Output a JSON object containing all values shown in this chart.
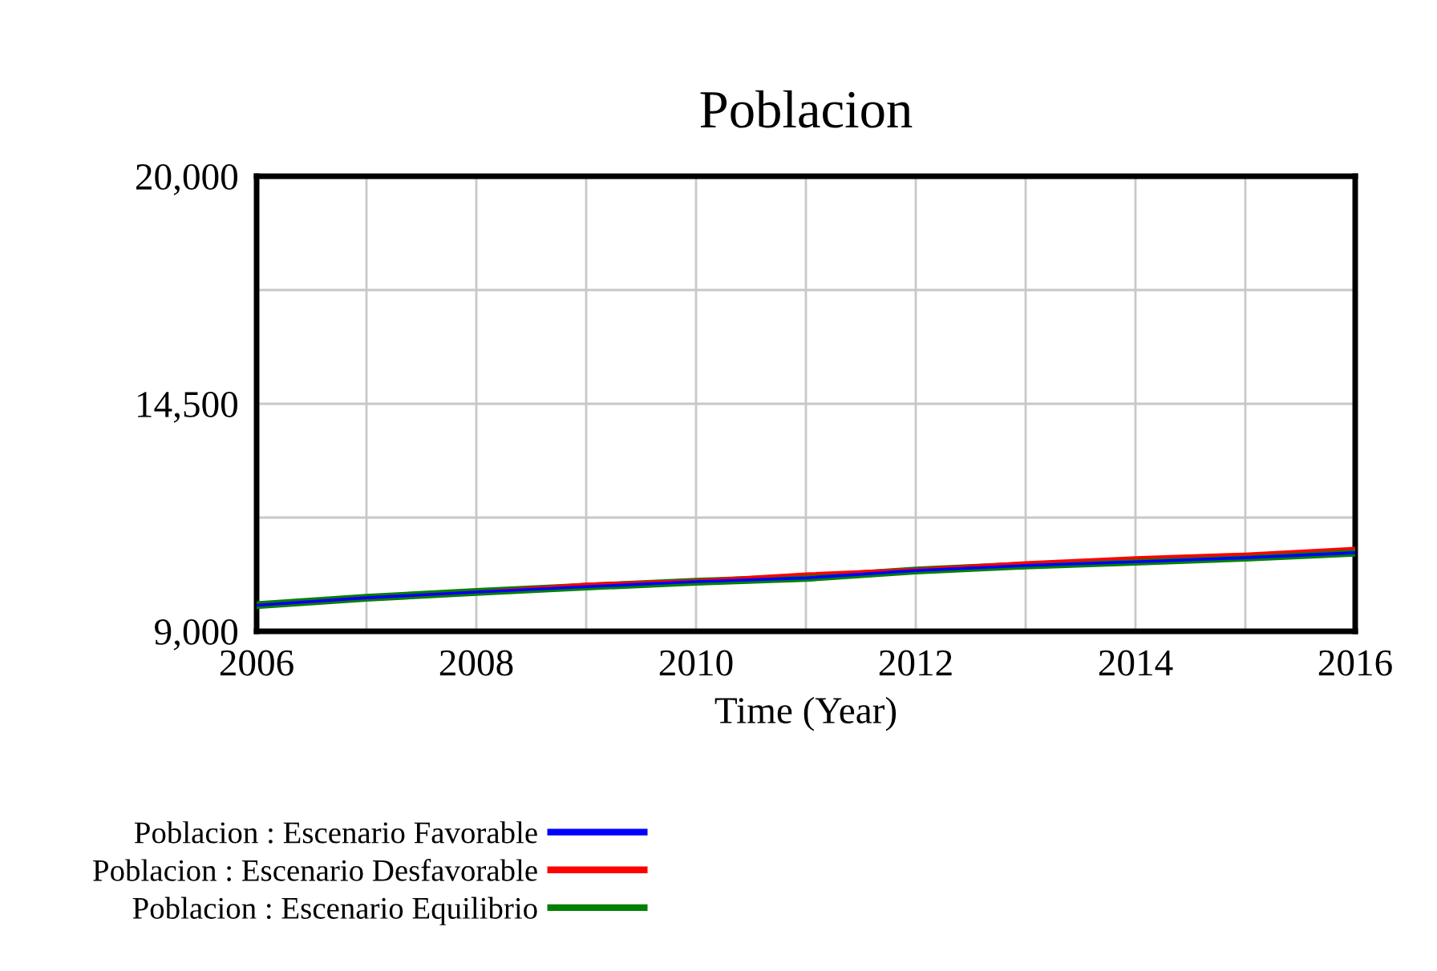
{
  "chart_data": {
    "type": "line",
    "title": "Poblacion",
    "xlabel": "Time (Year)",
    "x": [
      2006,
      2007,
      2008,
      2009,
      2010,
      2011,
      2012,
      2013,
      2014,
      2015,
      2016
    ],
    "series": [
      {
        "name": "Poblacion : Escenario Favorable",
        "color": "#0000ff",
        "values": [
          9630,
          9810,
          9950,
          10080,
          10200,
          10290,
          10470,
          10590,
          10680,
          10780,
          10900
        ]
      },
      {
        "name": "Poblacion : Escenario Desfavorable",
        "color": "#ff0000",
        "values": [
          9630,
          9810,
          9950,
          10140,
          10230,
          10390,
          10500,
          10660,
          10780,
          10870,
          11010
        ]
      },
      {
        "name": "Poblacion : Escenario Equilibrio",
        "color": "#008000",
        "values": [
          9630,
          9810,
          9950,
          10080,
          10200,
          10290,
          10470,
          10590,
          10680,
          10780,
          10900
        ]
      }
    ],
    "xlim": [
      2006,
      2016
    ],
    "xticks": [
      2006,
      {
        "value": 2007,
        "label": null
      },
      2008,
      {
        "value": 2009,
        "label": null
      },
      2010,
      {
        "value": 2011,
        "label": null
      },
      2012,
      {
        "value": 2013,
        "label": null
      },
      2014,
      {
        "value": 2015,
        "label": null
      },
      2016
    ],
    "ylim": [
      9000,
      20000
    ],
    "yticks": [
      {
        "value": 9000,
        "label": "9,000"
      },
      {
        "value": 11750,
        "label": null
      },
      {
        "value": 14500,
        "label": "14,500"
      },
      {
        "value": 17250,
        "label": null
      },
      {
        "value": 20000,
        "label": "20,000"
      }
    ],
    "grid": true,
    "legend": "bottom",
    "line_style": "solid"
  }
}
